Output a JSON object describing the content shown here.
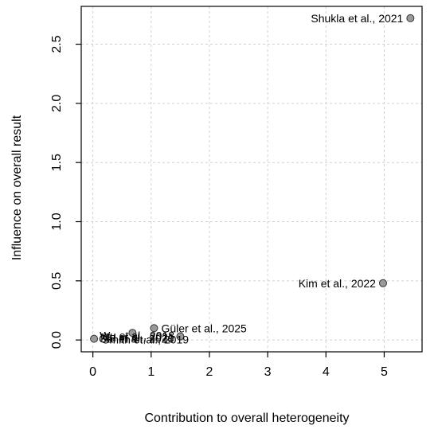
{
  "chart_data": {
    "type": "scatter",
    "title": "",
    "xlabel": "Contribution to overall heterogeneity",
    "ylabel": "Influence on overall result",
    "xlim": [
      -0.2,
      5.65
    ],
    "ylim": [
      -0.1,
      2.82
    ],
    "xticks": [
      0,
      1,
      2,
      3,
      4,
      5
    ],
    "yticks": [
      0.0,
      0.5,
      1.0,
      1.5,
      2.0,
      2.5
    ],
    "xtick_labels": [
      "0",
      "1",
      "2",
      "3",
      "4",
      "5"
    ],
    "ytick_labels": [
      "0.0",
      "0.5",
      "1.0",
      "1.5",
      "2.0",
      "2.5"
    ],
    "grid": true,
    "points": [
      {
        "label": "Shukla et al., 2021",
        "x": 5.45,
        "y": 2.72,
        "label_side": "left"
      },
      {
        "label": "Kim et al., 2022",
        "x": 4.98,
        "y": 0.48,
        "label_side": "left"
      },
      {
        "label": "Güler et al., 2025",
        "x": 1.05,
        "y": 0.1,
        "label_side": "right"
      },
      {
        "label": "",
        "x": 0.68,
        "y": 0.06,
        "label_side": "right"
      },
      {
        "label": "",
        "x": 1.5,
        "y": 0.03,
        "label_side": "right"
      },
      {
        "label": "",
        "x": 0.25,
        "y": 0.02,
        "label_side": "right"
      },
      {
        "label": "",
        "x": 0.02,
        "y": 0.01,
        "label_side": "right"
      }
    ],
    "overlapped_label_texts": [
      "Cai et al., 2020",
      "Ma et al., 2021",
      "Smith et al., 2019",
      "Wu et al., 2018"
    ]
  }
}
